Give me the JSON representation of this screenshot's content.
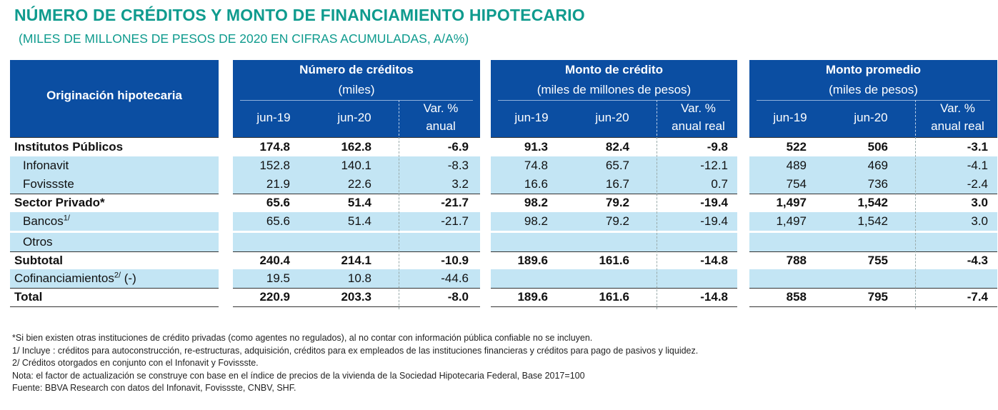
{
  "title": "NÚMERO DE CRÉDITOS Y MONTO DE FINANCIAMIENTO HIPOTECARIO",
  "subtitle": "(MILES DE MILLONES DE PESOS DE 2020 EN CIFRAS ACUMULADAS,  A/A%)",
  "header": {
    "row_label": "Originación hipotecaria",
    "groups": [
      {
        "title": "Número de créditos",
        "unit": "(miles)",
        "cols": [
          "jun-19",
          "jun-20",
          "Var. %",
          "anual"
        ]
      },
      {
        "title": "Monto de crédito",
        "unit": "(miles de millones de pesos)",
        "cols": [
          "jun-19",
          "jun-20",
          "Var. %",
          "anual real"
        ]
      },
      {
        "title": "Monto promedio",
        "unit": "(miles de pesos)",
        "cols": [
          "jun-19",
          "jun-20",
          "Var. %",
          "anual real"
        ]
      }
    ]
  },
  "rows": [
    {
      "label": "Institutos Públicos",
      "sup": "",
      "suffix": "",
      "v": [
        "174.8",
        "162.8",
        "-6.9",
        "91.3",
        "82.4",
        "-9.8",
        "522",
        "506",
        "-3.1"
      ]
    },
    {
      "label": "Infonavit",
      "sup": "",
      "suffix": "",
      "v": [
        "152.8",
        "140.1",
        "-8.3",
        "74.8",
        "65.7",
        "-12.1",
        "489",
        "469",
        "-4.1"
      ]
    },
    {
      "label": "Fovissste",
      "sup": "",
      "suffix": "",
      "v": [
        "21.9",
        "22.6",
        "3.2",
        "16.6",
        "16.7",
        "0.7",
        "754",
        "736",
        "-2.4"
      ]
    },
    {
      "label": "Sector Privado*",
      "sup": "",
      "suffix": "",
      "v": [
        "65.6",
        "51.4",
        "-21.7",
        "98.2",
        "79.2",
        "-19.4",
        "1,497",
        "1,542",
        "3.0"
      ]
    },
    {
      "label": "Bancos",
      "sup": "1/",
      "suffix": "",
      "v": [
        "65.6",
        "51.4",
        "-21.7",
        "98.2",
        "79.2",
        "-19.4",
        "1,497",
        "1,542",
        "3.0"
      ]
    },
    {
      "label": "Otros",
      "sup": "",
      "suffix": "",
      "v": [
        "",
        "",
        "",
        "",
        "",
        "",
        "",
        "",
        ""
      ]
    },
    {
      "label": "Subtotal",
      "sup": "",
      "suffix": "",
      "v": [
        "240.4",
        "214.1",
        "-10.9",
        "189.6",
        "161.6",
        "-14.8",
        "788",
        "755",
        "-4.3"
      ]
    },
    {
      "label": "Cofinanciamientos",
      "sup": "2/",
      "suffix": " (-)",
      "v": [
        "19.5",
        "10.8",
        "-44.6",
        "",
        "",
        "",
        "",
        "",
        ""
      ]
    },
    {
      "label": "Total",
      "sup": "",
      "suffix": "",
      "v": [
        "220.9",
        "203.3",
        "-8.0",
        "189.6",
        "161.6",
        "-14.8",
        "858",
        "795",
        "-7.4"
      ]
    }
  ],
  "notes": [
    "*Si bien existen otras instituciones de crédito privadas (como agentes no regulados), al no contar con información pública confiable no se incluyen.",
    "1/ Incluye : créditos para autoconstrucción, re-estructuras, adquisición, créditos para ex empleados de las instituciones financieras y créditos para pago de pasivos y liquidez.",
    "2/ Créditos otorgados en conjunto con el Infonavit y Fovissste.",
    "Nota: el factor de actualización se construye con base en el índice de precios de la vivienda de la Sociedad Hipotecaria Federal, Base 2017=100",
    "Fuente: BBVA Research con datos del Infonavit, Fovissste, CNBV, SHF."
  ]
}
